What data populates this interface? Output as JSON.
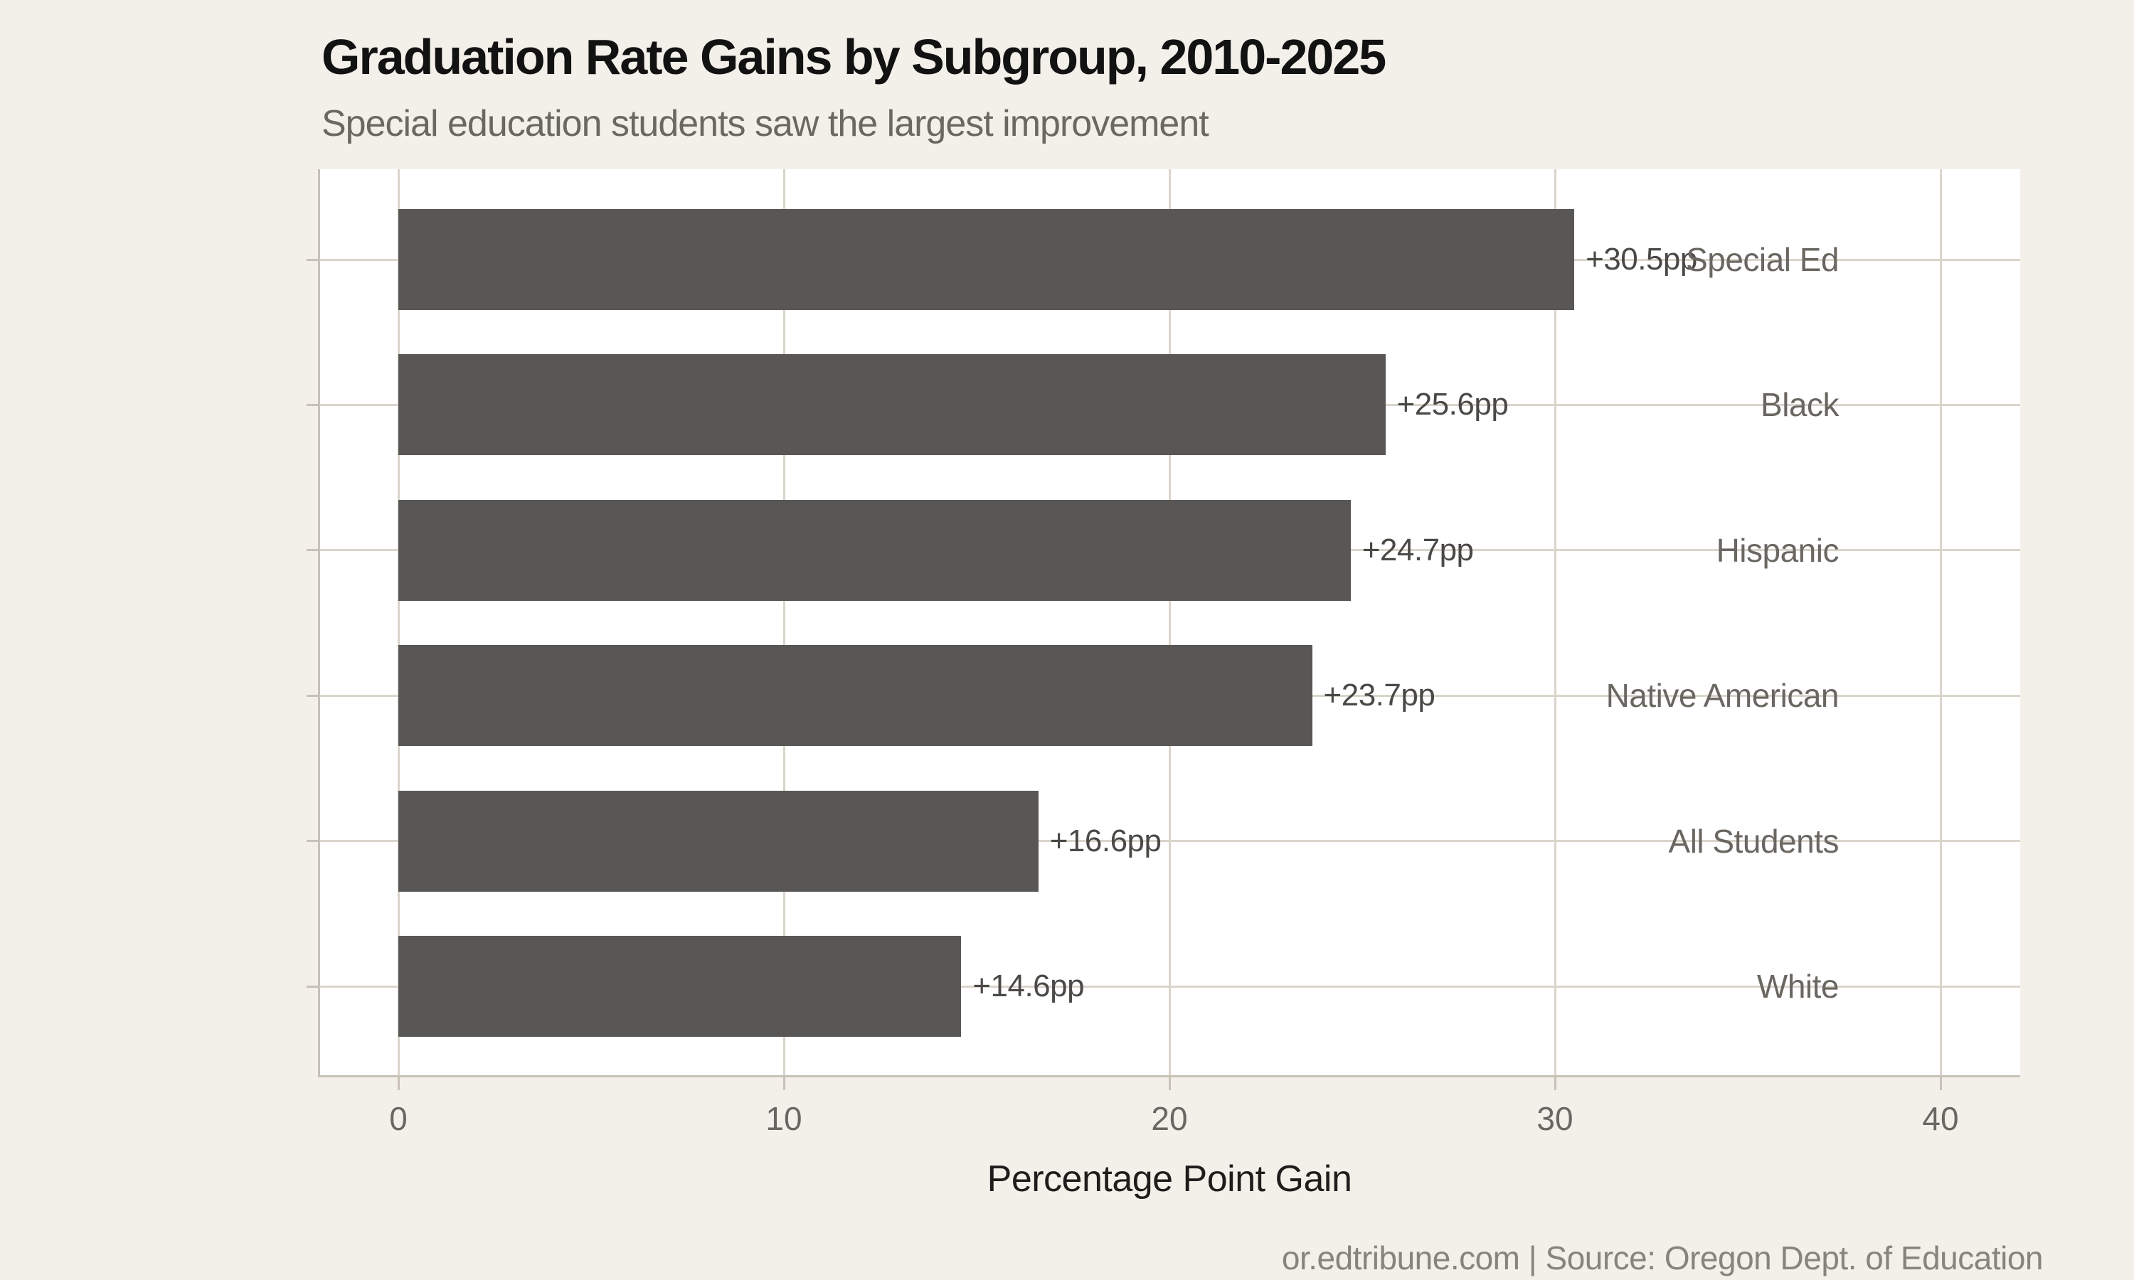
{
  "chart_data": {
    "type": "bar",
    "orientation": "horizontal",
    "title": "Graduation Rate Gains by Subgroup, 2010-2025",
    "subtitle": "Special education students saw the largest improvement",
    "caption": "or.edtribune.com | Source: Oregon Dept. of Education",
    "categories": [
      "Special Ed",
      "Black",
      "Hispanic",
      "Native American",
      "All Students",
      "White"
    ],
    "values": [
      30.5,
      25.6,
      24.7,
      23.7,
      16.6,
      14.6
    ],
    "value_labels": [
      "+30.5pp",
      "+25.6pp",
      "+24.7pp",
      "+23.7pp",
      "+16.6pp",
      "+14.6pp"
    ],
    "xlabel": "Percentage Point Gain",
    "x_ticks": [
      0,
      10,
      20,
      30,
      40
    ],
    "xlim": [
      -2,
      42
    ],
    "grid": true,
    "legend_position": "none",
    "colors": {
      "page_bg": "#F3F0EA",
      "panel_bg": "#FFFFFF",
      "bar": "#585756",
      "grid": "#DAD5CB",
      "axis": "#C7C1B7",
      "title": "#121212",
      "subtitle": "#6B6862",
      "category_label": "#6A6661",
      "tick_label": "#6A6661",
      "value_label": "#4B4946",
      "axis_title": "#1E1D1B",
      "caption": "#87837D"
    }
  }
}
